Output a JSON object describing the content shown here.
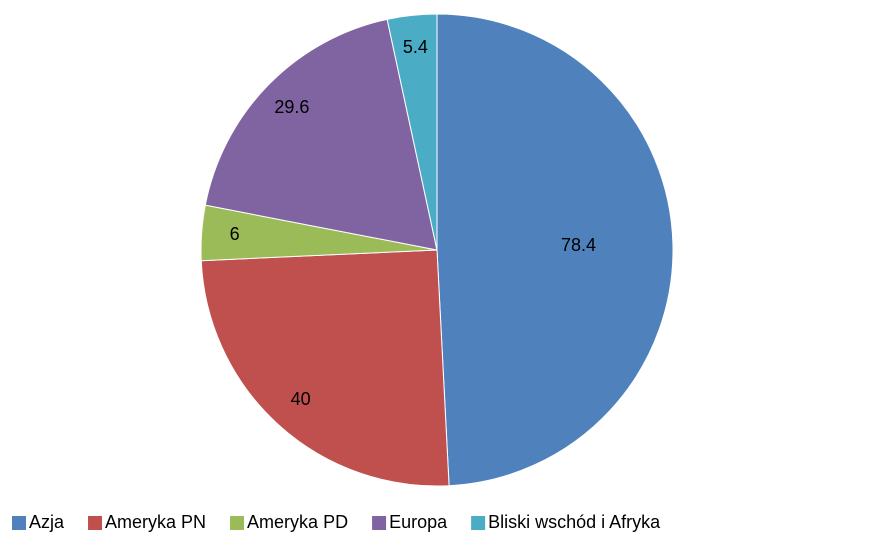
{
  "chart_data": {
    "type": "pie",
    "categories": [
      "Azja",
      "Ameryka PN",
      "Ameryka PD",
      "Europa",
      "Bliski wschód i Afryka"
    ],
    "values": [
      78.4,
      40,
      6,
      29.6,
      5.4
    ],
    "colors": [
      "#4f81bd",
      "#c0504d",
      "#9bbb59",
      "#8064a2",
      "#4bacc6"
    ],
    "legend": "bottom"
  }
}
